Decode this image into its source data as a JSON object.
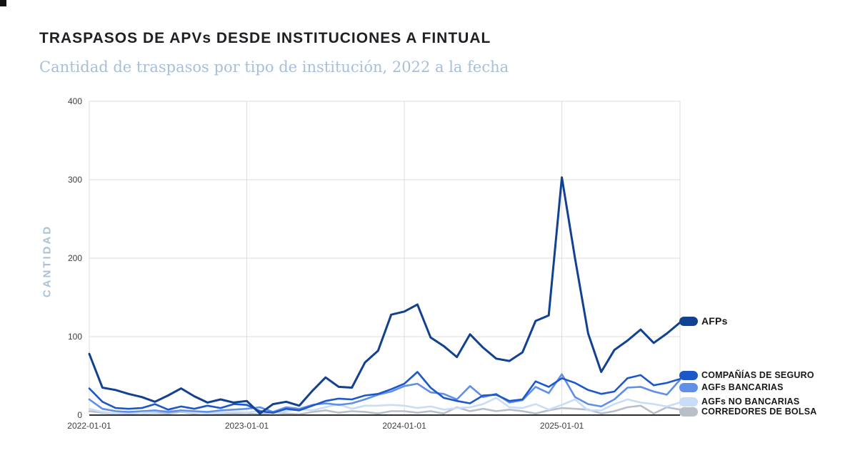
{
  "title": "TRASPASOS DE APVs DESDE INSTITUCIONES A FINTUAL",
  "subtitle": "Cantidad de traspasos por tipo de institución, 2022 a la fecha",
  "chart_data": {
    "type": "line",
    "title": "TRASPASOS DE APVs DESDE INSTITUCIONES A FINTUAL",
    "subtitle": "Cantidad de traspasos por tipo de institución, 2022 a la fecha",
    "ylabel": "CANTIDAD",
    "xlabel": "",
    "ylim": [
      0,
      400
    ],
    "yticks": [
      0,
      100,
      200,
      300,
      400
    ],
    "xtick_labels": [
      "2022-01-01",
      "2023-01-01",
      "2024-01-01",
      "2025-01-01"
    ],
    "grid": true,
    "legend_position": "right",
    "x": [
      "2022-01",
      "2022-02",
      "2022-03",
      "2022-04",
      "2022-05",
      "2022-06",
      "2022-07",
      "2022-08",
      "2022-09",
      "2022-10",
      "2022-11",
      "2022-12",
      "2023-01",
      "2023-02",
      "2023-03",
      "2023-04",
      "2023-05",
      "2023-06",
      "2023-07",
      "2023-08",
      "2023-09",
      "2023-10",
      "2023-11",
      "2023-12",
      "2024-01",
      "2024-02",
      "2024-03",
      "2024-04",
      "2024-05",
      "2024-06",
      "2024-07",
      "2024-08",
      "2024-09",
      "2024-10",
      "2024-11",
      "2024-12",
      "2025-01",
      "2025-02",
      "2025-03",
      "2025-04",
      "2025-05",
      "2025-06",
      "2025-07",
      "2025-08",
      "2025-09",
      "2025-10"
    ],
    "series": [
      {
        "name": "AFPs",
        "color": "#12418f",
        "values": [
          78,
          35,
          32,
          27,
          23,
          17,
          25,
          34,
          24,
          16,
          20,
          16,
          18,
          2,
          14,
          17,
          12,
          31,
          48,
          36,
          35,
          67,
          82,
          128,
          132,
          141,
          99,
          88,
          74,
          103,
          86,
          72,
          69,
          80,
          120,
          127,
          303,
          200,
          104,
          55,
          83,
          95,
          109,
          92,
          104,
          118
        ]
      },
      {
        "name": "COMPAÑÍAS DE SEGURO",
        "color": "#1d57c8",
        "values": [
          34,
          17,
          9,
          8,
          9,
          14,
          7,
          11,
          8,
          12,
          9,
          14,
          13,
          5,
          3,
          8,
          6,
          12,
          18,
          21,
          20,
          25,
          27,
          33,
          40,
          55,
          35,
          22,
          18,
          15,
          25,
          26,
          18,
          20,
          43,
          36,
          47,
          41,
          32,
          27,
          30,
          47,
          51,
          38,
          41,
          46
        ]
      },
      {
        "name": "AGFs BANCARIAS",
        "color": "#5f8fe8",
        "values": [
          20,
          8,
          5,
          4,
          5,
          6,
          4,
          6,
          5,
          4,
          6,
          7,
          8,
          10,
          4,
          10,
          8,
          13,
          15,
          13,
          15,
          20,
          26,
          30,
          37,
          40,
          29,
          27,
          20,
          37,
          23,
          27,
          16,
          19,
          36,
          28,
          52,
          23,
          14,
          11,
          20,
          35,
          36,
          30,
          26,
          45
        ]
      },
      {
        "name": "AGFs NO BANCARIAS",
        "color": "#c9ddf6",
        "values": [
          8,
          4,
          2,
          3,
          2,
          4,
          6,
          5,
          3,
          2,
          3,
          4,
          3,
          6,
          2,
          5,
          8,
          6,
          10,
          14,
          8,
          12,
          12,
          13,
          12,
          9,
          11,
          7,
          9,
          10,
          14,
          22,
          10,
          9,
          14,
          7,
          13,
          20,
          6,
          6,
          14,
          20,
          16,
          14,
          11,
          16
        ]
      },
      {
        "name": "CORREDORES DE BOLSA",
        "color": "#b9bfc8",
        "values": [
          5,
          3,
          2,
          1,
          2,
          3,
          2,
          4,
          2,
          3,
          1,
          2,
          2,
          1,
          3,
          2,
          1,
          4,
          6,
          3,
          5,
          4,
          2,
          5,
          5,
          3,
          5,
          2,
          10,
          5,
          8,
          5,
          7,
          5,
          2,
          6,
          9,
          8,
          7,
          2,
          5,
          10,
          12,
          2,
          10,
          7
        ]
      }
    ]
  }
}
